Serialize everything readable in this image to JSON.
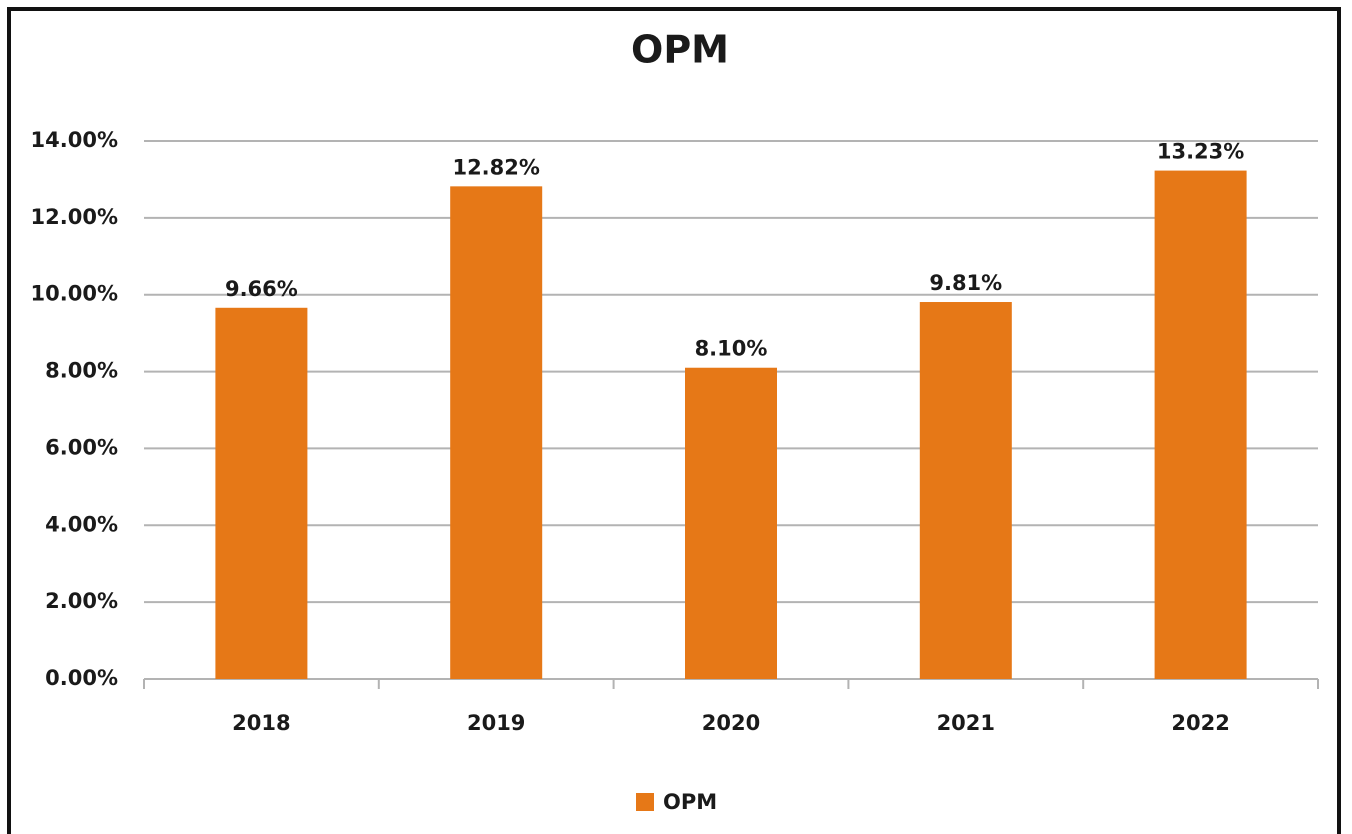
{
  "chart_data": {
    "type": "bar",
    "title": "OPM",
    "categories": [
      "2018",
      "2019",
      "2020",
      "2021",
      "2022"
    ],
    "series": [
      {
        "name": "OPM",
        "color": "#e67817",
        "values": [
          9.66,
          12.82,
          8.1,
          9.81,
          13.23
        ],
        "value_labels": [
          "9.66%",
          "12.82%",
          "8.10%",
          "9.81%",
          "13.23%"
        ]
      }
    ],
    "ylim": [
      0,
      14
    ],
    "yticks": [
      {
        "value": 0,
        "label": "0.00%"
      },
      {
        "value": 2,
        "label": "2.00%"
      },
      {
        "value": 4,
        "label": "4.00%"
      },
      {
        "value": 6,
        "label": "6.00%"
      },
      {
        "value": 8,
        "label": "8.00%"
      },
      {
        "value": 10,
        "label": "10.00%"
      },
      {
        "value": 12,
        "label": "12.00%"
      },
      {
        "value": 14,
        "label": "14.00%"
      }
    ],
    "grid": true,
    "legend": "bottom"
  }
}
